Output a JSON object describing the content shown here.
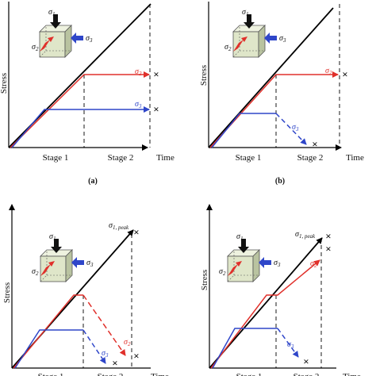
{
  "colors": {
    "sigma1": "#000000",
    "sigma2": "#e0302b",
    "sigma3": "#2f46c9",
    "cube_face": "#dfe6c9",
    "cube_side": "#b9c3a0",
    "cube_top": "#eef2df"
  },
  "labels": {
    "stress": "Stress",
    "time": "Time",
    "stage1": "Stage 1",
    "stage2": "Stage 2",
    "sigma": "σ",
    "peak_suffix": "1, peak",
    "sub1": "1",
    "sub2": "2",
    "sub3": "3",
    "panel_a": "(a)",
    "panel_b": "(b)",
    "failure_mark": "×"
  },
  "icons": {
    "failure": "cross-mark-icon",
    "specimen": "cube-specimen-icon",
    "stress_arrow": "arrow-icon"
  }
}
